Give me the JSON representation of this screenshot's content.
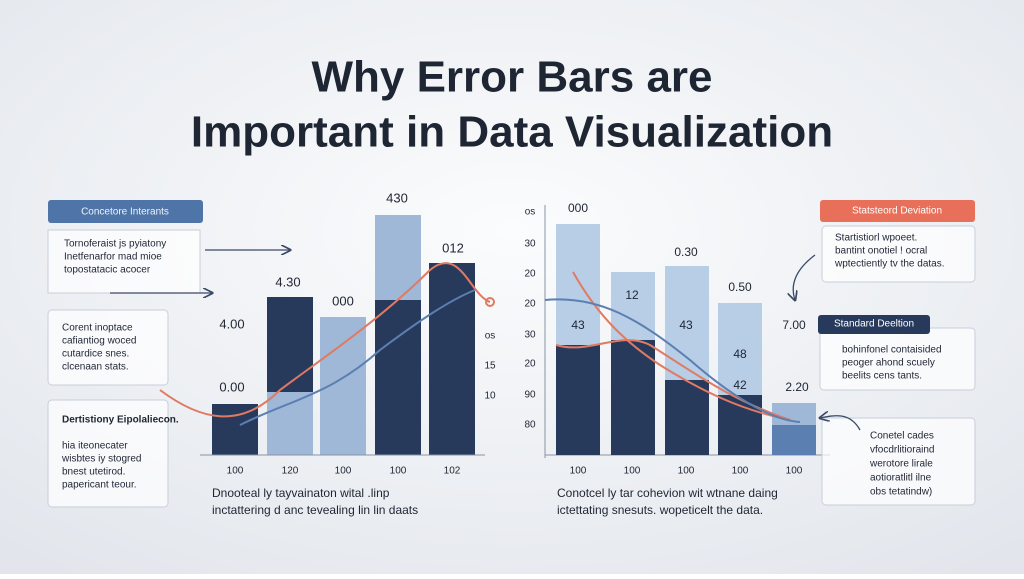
{
  "title": [
    "Why Error Bars are",
    "Important in Data Visualization"
  ],
  "left_chart": {
    "value_labels": [
      "0.00",
      "4.00",
      "4.30",
      "000",
      "430",
      "012"
    ],
    "side_labels": [
      "os",
      "15",
      "10"
    ],
    "x_labels": [
      "100",
      "120",
      "100",
      "100",
      "102"
    ],
    "caption": [
      "Dnooteal ly tayvainaton wital .linp",
      "inctattering d anc tevealing lin lin daats"
    ]
  },
  "right_chart": {
    "axis_labels": [
      "os",
      "30",
      "20",
      "20",
      "30",
      "20",
      "90",
      "80"
    ],
    "value_labels": [
      "000",
      "12",
      "0.30",
      "43",
      "43",
      "0.50",
      "48",
      "42",
      "2.20",
      "7.00"
    ],
    "x_labels": [
      "100",
      "100",
      "100",
      "100",
      "100"
    ],
    "caption": [
      "Conotcel ly tar cohevion wit wtnane daing",
      "ictettating snesuts. wopeticelt the data."
    ]
  },
  "left_notes": [
    {
      "header": "Concetore Interants",
      "lines": [
        "Tornoferaist js pyiatony",
        "Inetfenarfor mad mioe",
        "topostatacic acocer"
      ]
    },
    {
      "lines": [
        "Corent inoptace",
        "cafiantiog woced",
        "cutardice snes.",
        "clcenaan stats."
      ]
    },
    {
      "header": "Dertistiony Eipolaliecon.",
      "lines": [
        "hia iteonecater",
        "wisbtes iy stogred",
        "bnest utetirod.",
        "papericant teour."
      ]
    }
  ],
  "right_notes": [
    {
      "header": "Statsteord Deviation",
      "lines": [
        "Startistiorl wpoeet.",
        "bantint onotiel ! ocral",
        "wptectiently tv the datas."
      ]
    },
    {
      "header": "Standard Deeltion",
      "lines": [
        "bohinfonel contaisided",
        "peoger ahond scuely",
        "beelits cens tants."
      ]
    },
    {
      "lines": [
        "Conetel cades",
        "vfocdrlitioraind",
        "werotore lirale",
        "aotioratlitl ilne",
        "obs tetatindw)"
      ]
    }
  ]
}
